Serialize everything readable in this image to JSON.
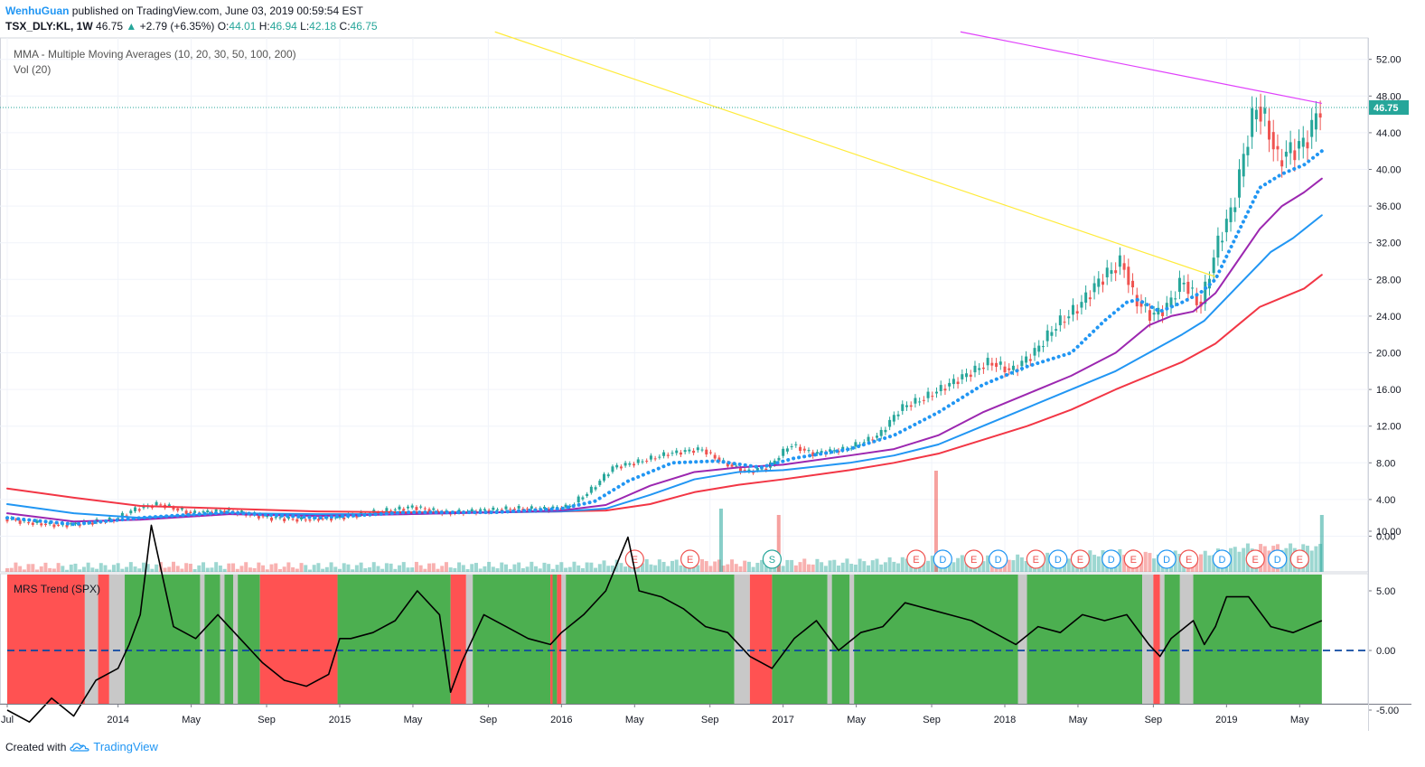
{
  "header": {
    "author": "WenhuGuan",
    "published_text": "published on TradingView.com, June 03, 2019 00:59:54 EST",
    "symbol": "TSX_DLY:KL, 1W",
    "last": "46.75",
    "change": "+2.79 (+6.35%)",
    "open_label": "O:",
    "open": "44.01",
    "high_label": "H:",
    "high": "46.94",
    "low_label": "L:",
    "low": "42.18",
    "close_label": "C:",
    "close": "46.75"
  },
  "footer": {
    "created_with": "Created with",
    "brand": "TradingView"
  },
  "colors": {
    "up": "#26a69a",
    "down": "#ef5350",
    "ma10": "#2196f3",
    "ma20": "#9c27b0",
    "ma30": "#2196f3",
    "ma50": "#f23645",
    "trend_yellow": "#ffeb3b",
    "trend_magenta": "#e040fb",
    "zone_green": "#4caf50",
    "zone_red": "#ff5252",
    "zone_gray": "#c8c8c8"
  },
  "chart_data": [
    {
      "type": "line",
      "title": "",
      "legend": [
        "MMA - Multiple Moving Averages (10, 20, 30, 50, 100, 200)",
        "Vol (20)"
      ],
      "y_ticks": [
        "52.00",
        "48.00",
        "44.00",
        "40.00",
        "36.00",
        "32.00",
        "28.00",
        "24.00",
        "20.00",
        "16.00",
        "12.00",
        "8.00",
        "4.00",
        "0.00"
      ],
      "ylim": [
        -3,
        56
      ],
      "last_price_label": "46.75",
      "last_price": 46.75,
      "x_ticks": [
        "Jul",
        "2014",
        "May",
        "Sep",
        "2015",
        "May",
        "Sep",
        "2016",
        "May",
        "Sep",
        "2017",
        "May",
        "Sep",
        "2018",
        "May",
        "Sep",
        "2019",
        "May"
      ],
      "x_tick_t": [
        2013.5,
        2014.0,
        2014.33,
        2014.67,
        2015.0,
        2015.33,
        2015.67,
        2016.0,
        2016.33,
        2016.67,
        2017.0,
        2017.33,
        2017.67,
        2018.0,
        2018.33,
        2018.67,
        2019.0,
        2019.33
      ],
      "xlim": [
        2013.5,
        2019.5
      ],
      "price_path": {
        "t": [
          2013.5,
          2013.6,
          2013.75,
          2013.9,
          2014.0,
          2014.1,
          2014.2,
          2014.35,
          2014.5,
          2014.7,
          2014.85,
          2015.0,
          2015.15,
          2015.35,
          2015.5,
          2015.65,
          2015.8,
          2015.95,
          2016.05,
          2016.15,
          2016.25,
          2016.35,
          2016.5,
          2016.65,
          2016.75,
          2016.85,
          2016.95,
          2017.05,
          2017.15,
          2017.3,
          2017.45,
          2017.55,
          2017.65,
          2017.8,
          2017.95,
          2018.05,
          2018.15,
          2018.25,
          2018.35,
          2018.45,
          2018.55,
          2018.6,
          2018.68,
          2018.75,
          2018.82,
          2018.9,
          2018.98,
          2019.05,
          2019.1,
          2019.15,
          2019.2,
          2019.25,
          2019.3,
          2019.35,
          2019.4,
          2019.43
        ],
        "close": [
          2.0,
          1.5,
          1.2,
          1.5,
          1.8,
          3.0,
          3.5,
          2.5,
          2.8,
          2.0,
          1.8,
          2.0,
          2.5,
          3.2,
          2.5,
          2.8,
          3.0,
          3.0,
          3.2,
          5.0,
          7.5,
          8.0,
          9.0,
          9.5,
          8.0,
          7.0,
          7.5,
          10.0,
          9.0,
          9.5,
          11.0,
          14.0,
          15.0,
          17.0,
          19.0,
          18.0,
          20.0,
          23.0,
          25.0,
          28.0,
          30.0,
          26.0,
          24.0,
          25.0,
          28.0,
          25.0,
          32.0,
          36.0,
          42.0,
          47.0,
          45.0,
          41.0,
          42.0,
          42.5,
          44.0,
          46.75
        ]
      },
      "ma10": {
        "t": [
          2013.5,
          2013.8,
          2014.1,
          2014.5,
          2014.9,
          2015.3,
          2015.7,
          2016.0,
          2016.15,
          2016.3,
          2016.5,
          2016.7,
          2016.9,
          2017.05,
          2017.3,
          2017.5,
          2017.7,
          2017.9,
          2018.1,
          2018.3,
          2018.45,
          2018.55,
          2018.6,
          2018.7,
          2018.8,
          2018.88,
          2018.95,
          2019.05,
          2019.15,
          2019.25,
          2019.35,
          2019.43
        ],
        "values": [
          2.0,
          1.3,
          2.0,
          2.6,
          2.0,
          2.6,
          2.6,
          3.0,
          3.8,
          6.0,
          8.0,
          8.2,
          7.5,
          8.5,
          9.5,
          11.0,
          13.5,
          16.5,
          18.5,
          20.0,
          23.5,
          25.5,
          25.8,
          24.5,
          25.5,
          26.5,
          28.0,
          33.0,
          38.0,
          39.5,
          40.5,
          42.0
        ]
      },
      "ma20": {
        "t": [
          2013.5,
          2013.8,
          2014.1,
          2014.5,
          2014.9,
          2015.3,
          2015.7,
          2016.0,
          2016.2,
          2016.4,
          2016.6,
          2016.8,
          2017.0,
          2017.3,
          2017.5,
          2017.7,
          2017.9,
          2018.1,
          2018.3,
          2018.5,
          2018.65,
          2018.75,
          2018.85,
          2018.95,
          2019.05,
          2019.15,
          2019.25,
          2019.35,
          2019.43
        ],
        "values": [
          2.5,
          1.6,
          1.8,
          2.4,
          2.2,
          2.4,
          2.6,
          2.8,
          3.4,
          5.5,
          7.0,
          7.5,
          7.8,
          8.8,
          9.5,
          11.0,
          13.5,
          15.5,
          17.5,
          20.0,
          23.0,
          24.0,
          24.5,
          26.5,
          30.0,
          33.5,
          36.0,
          37.5,
          39.0
        ]
      },
      "ma30": {
        "t": [
          2013.5,
          2013.8,
          2014.1,
          2014.5,
          2014.9,
          2015.3,
          2015.7,
          2016.0,
          2016.2,
          2016.4,
          2016.6,
          2016.8,
          2017.0,
          2017.3,
          2017.5,
          2017.7,
          2017.9,
          2018.1,
          2018.3,
          2018.5,
          2018.65,
          2018.8,
          2018.9,
          2019.0,
          2019.1,
          2019.2,
          2019.3,
          2019.43
        ],
        "values": [
          3.5,
          2.5,
          2.0,
          2.5,
          2.4,
          2.4,
          2.6,
          2.7,
          3.0,
          4.5,
          6.2,
          7.0,
          7.2,
          8.0,
          8.8,
          10.0,
          12.0,
          14.0,
          16.0,
          18.0,
          20.0,
          22.0,
          23.5,
          26.0,
          28.5,
          31.0,
          32.5,
          35.0
        ]
      },
      "ma50": {
        "t": [
          2013.5,
          2013.8,
          2014.1,
          2014.5,
          2014.9,
          2015.3,
          2015.7,
          2016.0,
          2016.2,
          2016.4,
          2016.6,
          2016.8,
          2017.0,
          2017.3,
          2017.5,
          2017.7,
          2017.9,
          2018.1,
          2018.3,
          2018.5,
          2018.65,
          2018.8,
          2018.95,
          2019.05,
          2019.15,
          2019.25,
          2019.35,
          2019.43
        ],
        "values": [
          5.2,
          4.2,
          3.3,
          3.0,
          2.7,
          2.6,
          2.6,
          2.7,
          2.8,
          3.5,
          4.8,
          5.6,
          6.2,
          7.2,
          8.0,
          9.0,
          10.5,
          12.0,
          13.8,
          16.0,
          17.5,
          19.0,
          21.0,
          23.0,
          25.0,
          26.0,
          27.0,
          28.5
        ]
      },
      "trendlines": [
        {
          "name": "descending-yellow",
          "t1": 2015.7,
          "y1": 55.0,
          "t2": 2018.95,
          "y2": 28.3
        },
        {
          "name": "descending-magenta",
          "t1": 2017.8,
          "y1": 55.0,
          "t2": 2019.43,
          "y2": 47.2
        }
      ],
      "events": [
        {
          "label": "E",
          "t": 2016.33,
          "kind": "red"
        },
        {
          "label": "E",
          "t": 2016.58,
          "kind": "red"
        },
        {
          "label": "S",
          "t": 2016.95,
          "kind": "green"
        },
        {
          "label": "E",
          "t": 2017.6,
          "kind": "red"
        },
        {
          "label": "D",
          "t": 2017.72,
          "kind": "blue"
        },
        {
          "label": "E",
          "t": 2017.86,
          "kind": "red"
        },
        {
          "label": "D",
          "t": 2017.97,
          "kind": "blue"
        },
        {
          "label": "E",
          "t": 2018.14,
          "kind": "red"
        },
        {
          "label": "D",
          "t": 2018.24,
          "kind": "blue"
        },
        {
          "label": "E",
          "t": 2018.34,
          "kind": "red"
        },
        {
          "label": "D",
          "t": 2018.48,
          "kind": "blue"
        },
        {
          "label": "E",
          "t": 2018.58,
          "kind": "red"
        },
        {
          "label": "D",
          "t": 2018.73,
          "kind": "blue"
        },
        {
          "label": "E",
          "t": 2018.83,
          "kind": "red"
        },
        {
          "label": "D",
          "t": 2018.98,
          "kind": "blue"
        },
        {
          "label": "E",
          "t": 2019.13,
          "kind": "red"
        },
        {
          "label": "D",
          "t": 2019.23,
          "kind": "blue"
        },
        {
          "label": "E",
          "t": 2019.33,
          "kind": "red"
        }
      ],
      "volume_spikes": [
        {
          "t": 2016.72,
          "value": 1.0
        },
        {
          "t": 2016.98,
          "value": 0.9
        },
        {
          "t": 2017.69,
          "value": 1.6
        },
        {
          "t": 2019.43,
          "value": 0.9
        }
      ]
    },
    {
      "type": "line",
      "title": "",
      "legend": [
        "MRS Trend (SPX)"
      ],
      "y_ticks": [
        "10.00",
        "5.00",
        "0.00",
        "-5.00"
      ],
      "ylim": [
        -9,
        13
      ],
      "t": [
        2013.5,
        2013.6,
        2013.7,
        2013.8,
        2013.9,
        2014.0,
        2014.05,
        2014.1,
        2014.15,
        2014.25,
        2014.35,
        2014.45,
        2014.55,
        2014.65,
        2014.75,
        2014.85,
        2014.95,
        2015.0,
        2015.05,
        2015.15,
        2015.25,
        2015.35,
        2015.45,
        2015.5,
        2015.55,
        2015.65,
        2015.75,
        2015.85,
        2015.95,
        2016.0,
        2016.1,
        2016.2,
        2016.3,
        2016.35,
        2016.45,
        2016.55,
        2016.65,
        2016.75,
        2016.85,
        2016.95,
        2017.05,
        2017.15,
        2017.25,
        2017.35,
        2017.45,
        2017.55,
        2017.65,
        2017.75,
        2017.85,
        2017.95,
        2018.05,
        2018.15,
        2018.25,
        2018.35,
        2018.45,
        2018.55,
        2018.65,
        2018.7,
        2018.75,
        2018.85,
        2018.9,
        2018.95,
        2019.0,
        2019.1,
        2019.2,
        2019.3,
        2019.43
      ],
      "values": [
        -5.0,
        -6.0,
        -4.0,
        -5.5,
        -2.5,
        -1.5,
        0.5,
        3.0,
        10.5,
        2.0,
        1.0,
        3.0,
        1.0,
        -1.0,
        -2.5,
        -3.0,
        -2.0,
        1.0,
        1.0,
        1.5,
        2.5,
        5.0,
        3.0,
        -3.5,
        -1.0,
        3.0,
        2.0,
        1.0,
        0.5,
        1.5,
        3.0,
        5.0,
        9.5,
        5.0,
        4.5,
        3.5,
        2.0,
        1.5,
        -0.5,
        -1.5,
        1.0,
        2.5,
        0.0,
        1.5,
        2.0,
        4.0,
        3.5,
        3.0,
        2.5,
        1.5,
        0.5,
        2.0,
        1.5,
        3.0,
        2.5,
        3.0,
        0.5,
        -0.5,
        1.0,
        2.5,
        0.5,
        2.0,
        4.5,
        4.5,
        2.0,
        1.5,
        2.5
      ],
      "zones": [
        {
          "t1": 2013.5,
          "t2": 2013.85,
          "kind": "red"
        },
        {
          "t1": 2013.85,
          "t2": 2013.91,
          "kind": "gray"
        },
        {
          "t1": 2013.91,
          "t2": 2013.96,
          "kind": "red"
        },
        {
          "t1": 2013.96,
          "t2": 2014.03,
          "kind": "gray"
        },
        {
          "t1": 2014.03,
          "t2": 2014.37,
          "kind": "green"
        },
        {
          "t1": 2014.37,
          "t2": 2014.39,
          "kind": "gray"
        },
        {
          "t1": 2014.39,
          "t2": 2014.46,
          "kind": "green"
        },
        {
          "t1": 2014.46,
          "t2": 2014.48,
          "kind": "gray"
        },
        {
          "t1": 2014.48,
          "t2": 2014.52,
          "kind": "green"
        },
        {
          "t1": 2014.52,
          "t2": 2014.54,
          "kind": "gray"
        },
        {
          "t1": 2014.54,
          "t2": 2014.64,
          "kind": "green"
        },
        {
          "t1": 2014.64,
          "t2": 2014.99,
          "kind": "red"
        },
        {
          "t1": 2014.99,
          "t2": 2015.5,
          "kind": "green"
        },
        {
          "t1": 2015.5,
          "t2": 2015.57,
          "kind": "red"
        },
        {
          "t1": 2015.57,
          "t2": 2015.6,
          "kind": "gray"
        },
        {
          "t1": 2015.6,
          "t2": 2015.95,
          "kind": "green"
        },
        {
          "t1": 2015.95,
          "t2": 2015.96,
          "kind": "red"
        },
        {
          "t1": 2015.96,
          "t2": 2015.98,
          "kind": "green"
        },
        {
          "t1": 2015.98,
          "t2": 2016.0,
          "kind": "red"
        },
        {
          "t1": 2016.0,
          "t2": 2016.02,
          "kind": "gray"
        },
        {
          "t1": 2016.02,
          "t2": 2016.78,
          "kind": "green"
        },
        {
          "t1": 2016.78,
          "t2": 2016.85,
          "kind": "gray"
        },
        {
          "t1": 2016.85,
          "t2": 2016.95,
          "kind": "red"
        },
        {
          "t1": 2016.95,
          "t2": 2017.2,
          "kind": "green"
        },
        {
          "t1": 2017.2,
          "t2": 2017.22,
          "kind": "gray"
        },
        {
          "t1": 2017.22,
          "t2": 2017.3,
          "kind": "green"
        },
        {
          "t1": 2017.3,
          "t2": 2017.32,
          "kind": "gray"
        },
        {
          "t1": 2017.32,
          "t2": 2018.06,
          "kind": "green"
        },
        {
          "t1": 2018.06,
          "t2": 2018.1,
          "kind": "gray"
        },
        {
          "t1": 2018.1,
          "t2": 2018.62,
          "kind": "green"
        },
        {
          "t1": 2018.62,
          "t2": 2018.67,
          "kind": "gray"
        },
        {
          "t1": 2018.67,
          "t2": 2018.7,
          "kind": "red"
        },
        {
          "t1": 2018.7,
          "t2": 2018.72,
          "kind": "gray"
        },
        {
          "t1": 2018.72,
          "t2": 2018.79,
          "kind": "green"
        },
        {
          "t1": 2018.79,
          "t2": 2018.85,
          "kind": "gray"
        },
        {
          "t1": 2018.85,
          "t2": 2019.43,
          "kind": "green"
        }
      ]
    }
  ]
}
